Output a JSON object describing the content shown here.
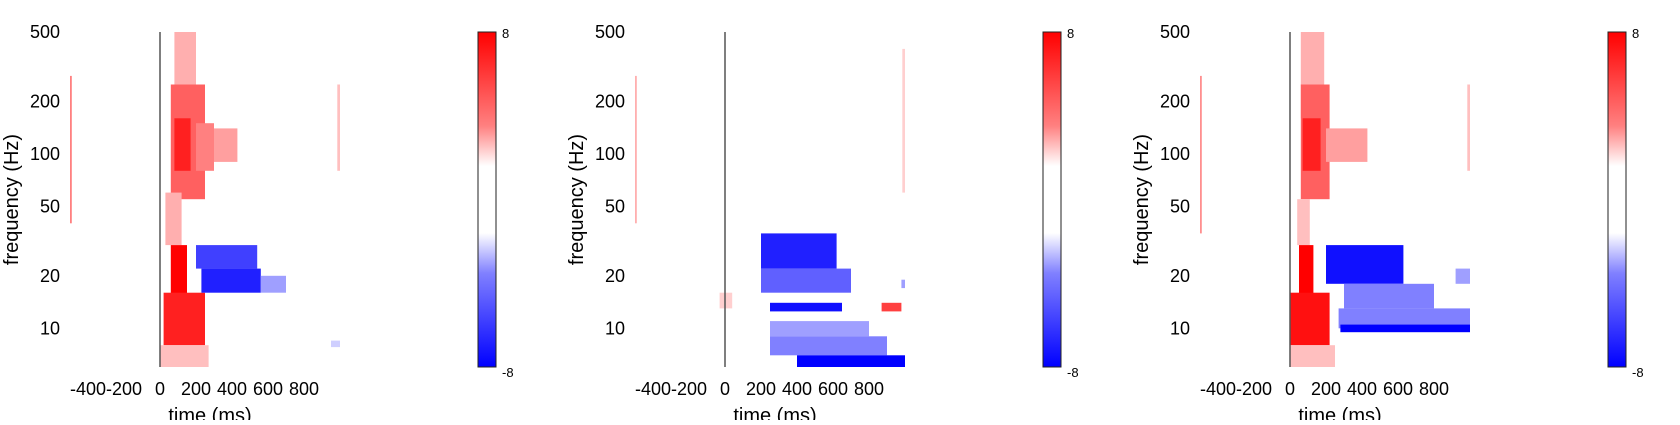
{
  "chart_data": [
    {
      "type": "heatmap",
      "xlabel": "time (ms)",
      "ylabel": "frequency (Hz)",
      "x_range": [
        -500,
        1000
      ],
      "y_range": [
        6,
        500
      ],
      "y_scale": "log",
      "x_ticks": [
        -400,
        -200,
        0,
        200,
        400,
        600,
        800
      ],
      "x_tick_labels": [
        "-400",
        "-200",
        "0",
        "200",
        "400",
        "600",
        "800"
      ],
      "y_ticks": [
        10,
        20,
        50,
        100,
        200,
        500
      ],
      "y_tick_labels": [
        "10",
        "20",
        "50",
        "100",
        "200",
        "500"
      ],
      "colorbar": {
        "min": -8,
        "max": 8,
        "max_label": "8",
        "min_label": "-8",
        "colors": [
          "#0000ff",
          "#ffffff",
          "#ff0000"
        ]
      },
      "stimulus_line_x": 0,
      "clusters": [
        {
          "t": [
            -510,
            -490
          ],
          "f": [
            40,
            280
          ],
          "value": 4
        },
        {
          "t": [
            80,
            200
          ],
          "f": [
            160,
            500
          ],
          "value": 2.5
        },
        {
          "t": [
            60,
            250
          ],
          "f": [
            55,
            250
          ],
          "value": 5
        },
        {
          "t": [
            80,
            170
          ],
          "f": [
            80,
            160
          ],
          "value": 7
        },
        {
          "t": [
            200,
            300
          ],
          "f": [
            80,
            150
          ],
          "value": 4
        },
        {
          "t": [
            300,
            430
          ],
          "f": [
            90,
            140
          ],
          "value": 3
        },
        {
          "t": [
            30,
            120
          ],
          "f": [
            30,
            60
          ],
          "value": 2.5
        },
        {
          "t": [
            60,
            150
          ],
          "f": [
            14,
            30
          ],
          "value": 8
        },
        {
          "t": [
            20,
            250
          ],
          "f": [
            8,
            16
          ],
          "value": 7
        },
        {
          "t": [
            0,
            270
          ],
          "f": [
            6,
            8
          ],
          "value": 2
        },
        {
          "t": [
            200,
            540
          ],
          "f": [
            22,
            30
          ],
          "value": -6
        },
        {
          "t": [
            230,
            560
          ],
          "f": [
            16,
            22
          ],
          "value": -7
        },
        {
          "t": [
            560,
            700
          ],
          "f": [
            16,
            20
          ],
          "value": -3
        },
        {
          "t": [
            950,
            1000
          ],
          "f": [
            7.8,
            8.5
          ],
          "value": -1.5
        },
        {
          "t": [
            985,
            1000
          ],
          "f": [
            80,
            250
          ],
          "value": 2
        }
      ]
    },
    {
      "type": "heatmap",
      "xlabel": "time (ms)",
      "ylabel": "frequency (Hz)",
      "x_range": [
        -500,
        1000
      ],
      "y_range": [
        6,
        500
      ],
      "y_scale": "log",
      "x_ticks": [
        -400,
        -200,
        0,
        200,
        400,
        600,
        800
      ],
      "x_tick_labels": [
        "-400",
        "-200",
        "0",
        "200",
        "400",
        "600",
        "800"
      ],
      "y_ticks": [
        10,
        20,
        50,
        100,
        200,
        500
      ],
      "y_tick_labels": [
        "10",
        "20",
        "50",
        "100",
        "200",
        "500"
      ],
      "colorbar": {
        "min": -8,
        "max": 8,
        "max_label": "8",
        "min_label": "-8",
        "colors": [
          "#0000ff",
          "#ffffff",
          "#ff0000"
        ]
      },
      "stimulus_line_x": 0,
      "clusters": [
        {
          "t": [
            -510,
            -490
          ],
          "f": [
            40,
            280
          ],
          "value": 2.5
        },
        {
          "t": [
            200,
            620
          ],
          "f": [
            22,
            35
          ],
          "value": -7
        },
        {
          "t": [
            200,
            700
          ],
          "f": [
            16,
            22
          ],
          "value": -5
        },
        {
          "t": [
            250,
            650
          ],
          "f": [
            12.5,
            14
          ],
          "value": -7.5
        },
        {
          "t": [
            250,
            800
          ],
          "f": [
            9,
            11
          ],
          "value": -3
        },
        {
          "t": [
            250,
            900
          ],
          "f": [
            7,
            9
          ],
          "value": -4
        },
        {
          "t": [
            400,
            1000
          ],
          "f": [
            6,
            7
          ],
          "value": -8
        },
        {
          "t": [
            870,
            980
          ],
          "f": [
            12.5,
            14
          ],
          "value": 6
        },
        {
          "t": [
            -30,
            40
          ],
          "f": [
            13,
            16
          ],
          "value": 1.5
        },
        {
          "t": [
            985,
            1000
          ],
          "f": [
            60,
            400
          ],
          "value": 1.5
        },
        {
          "t": [
            980,
            1000
          ],
          "f": [
            17,
            19
          ],
          "value": -3
        }
      ]
    },
    {
      "type": "heatmap",
      "xlabel": "time (ms)",
      "ylabel": "frequency (Hz)",
      "x_range": [
        -500,
        1000
      ],
      "y_range": [
        6,
        500
      ],
      "y_scale": "log",
      "x_ticks": [
        -400,
        -200,
        0,
        200,
        400,
        600,
        800
      ],
      "x_tick_labels": [
        "-400",
        "-200",
        "0",
        "200",
        "400",
        "600",
        "800"
      ],
      "y_ticks": [
        10,
        20,
        50,
        100,
        200,
        500
      ],
      "y_tick_labels": [
        "10",
        "20",
        "50",
        "100",
        "200",
        "500"
      ],
      "colorbar": {
        "min": -8,
        "max": 8,
        "max_label": "8",
        "min_label": "-8",
        "colors": [
          "#0000ff",
          "#ffffff",
          "#ff0000"
        ]
      },
      "stimulus_line_x": 0,
      "clusters": [
        {
          "t": [
            -510,
            -490
          ],
          "f": [
            35,
            280
          ],
          "value": 3.5
        },
        {
          "t": [
            60,
            190
          ],
          "f": [
            160,
            500
          ],
          "value": 2.5
        },
        {
          "t": [
            60,
            220
          ],
          "f": [
            55,
            250
          ],
          "value": 5
        },
        {
          "t": [
            70,
            170
          ],
          "f": [
            80,
            160
          ],
          "value": 7
        },
        {
          "t": [
            200,
            430
          ],
          "f": [
            90,
            140
          ],
          "value": 3
        },
        {
          "t": [
            40,
            110
          ],
          "f": [
            30,
            55
          ],
          "value": 2
        },
        {
          "t": [
            50,
            130
          ],
          "f": [
            14,
            30
          ],
          "value": 8
        },
        {
          "t": [
            0,
            220
          ],
          "f": [
            8,
            16
          ],
          "value": 7.5
        },
        {
          "t": [
            0,
            250
          ],
          "f": [
            6,
            8
          ],
          "value": 2
        },
        {
          "t": [
            200,
            630
          ],
          "f": [
            18,
            30
          ],
          "value": -7.5
        },
        {
          "t": [
            270,
            1000
          ],
          "f": [
            10,
            13
          ],
          "value": -4
        },
        {
          "t": [
            280,
            1000
          ],
          "f": [
            9.5,
            10.5
          ],
          "value": -8
        },
        {
          "t": [
            300,
            800
          ],
          "f": [
            13,
            18
          ],
          "value": -4
        },
        {
          "t": [
            920,
            1000
          ],
          "f": [
            18,
            22
          ],
          "value": -3
        },
        {
          "t": [
            985,
            1000
          ],
          "f": [
            80,
            250
          ],
          "value": 2
        }
      ]
    }
  ]
}
